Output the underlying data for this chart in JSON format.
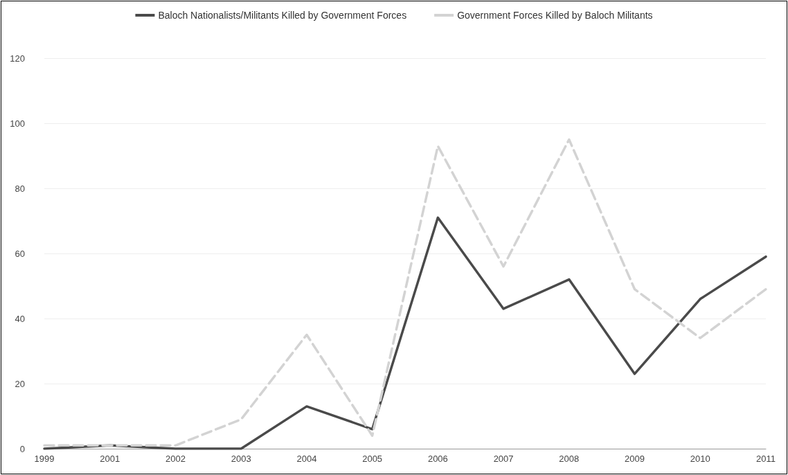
{
  "chart_data": {
    "type": "line",
    "categories": [
      "1999",
      "2001",
      "2002",
      "2003",
      "2004",
      "2005",
      "2006",
      "2007",
      "2008",
      "2009",
      "2010",
      "2011"
    ],
    "series": [
      {
        "name": "Baloch Nationalists/Militants Killed by Government Forces",
        "color": "#4a4a4a",
        "line_style": "solid",
        "values": [
          0,
          1,
          0,
          0,
          13,
          6,
          71,
          43,
          52,
          23,
          46,
          59
        ]
      },
      {
        "name": "Government Forces Killed by Baloch Militants",
        "color": "#d3d3d3",
        "line_style": "dashed",
        "values": [
          1,
          1,
          1,
          9,
          35,
          4,
          93,
          56,
          95,
          49,
          34,
          49
        ]
      }
    ],
    "ylim": [
      0,
      120
    ],
    "yticks": [
      0,
      20,
      40,
      60,
      80,
      100,
      120
    ],
    "grid": "y",
    "legend": "top",
    "marker": "none"
  }
}
